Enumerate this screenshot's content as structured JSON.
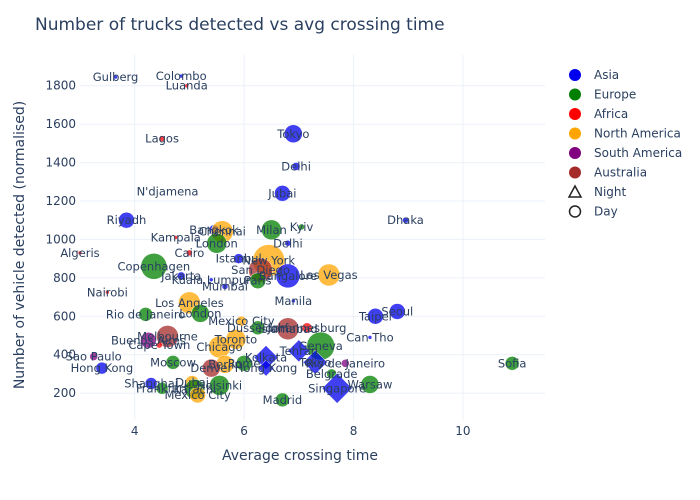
{
  "chart_data": {
    "type": "scatter",
    "title": "Number of trucks detected vs avg crossing time",
    "xlabel": "Average crossing time",
    "ylabel": "Number of vehicle detected (normalised)",
    "xlim": [
      3.0,
      11.5
    ],
    "ylim": [
      60,
      1960
    ],
    "x_ticks": [
      4,
      6,
      8,
      10
    ],
    "y_ticks": [
      200,
      400,
      600,
      800,
      1000,
      1200,
      1400,
      1600,
      1800
    ],
    "grid": true,
    "legend_position": "top-right",
    "legend": [
      {
        "name": "Asia",
        "color": "#0000ee",
        "symbol": "circle"
      },
      {
        "name": "Europe",
        "color": "#008000",
        "symbol": "circle"
      },
      {
        "name": "Africa",
        "color": "#ff0000",
        "symbol": "circle"
      },
      {
        "name": "North America",
        "color": "#ffa500",
        "symbol": "circle"
      },
      {
        "name": "South America",
        "color": "#800080",
        "symbol": "circle"
      },
      {
        "name": "Australia",
        "color": "#a52a2a",
        "symbol": "circle"
      },
      {
        "name": "Night",
        "color": "",
        "symbol": "triangle"
      },
      {
        "name": "Day",
        "color": "",
        "symbol": "circle"
      }
    ],
    "points": [
      {
        "label": "Gulberg",
        "x": 3.65,
        "y": 1845,
        "group": "Asia",
        "size": 2
      },
      {
        "label": "Colombo",
        "x": 4.85,
        "y": 1850,
        "group": "Asia",
        "size": 2
      },
      {
        "label": "Luanda",
        "x": 4.95,
        "y": 1800,
        "group": "Africa",
        "size": 2
      },
      {
        "label": "Tokyo",
        "x": 6.9,
        "y": 1550,
        "group": "Asia",
        "size": 9
      },
      {
        "label": "Lagos",
        "x": 4.5,
        "y": 1525,
        "group": "Africa",
        "size": 3
      },
      {
        "label": "Delhi",
        "x": 6.95,
        "y": 1380,
        "group": "Asia",
        "size": 4
      },
      {
        "label": "N'djamena",
        "x": 4.6,
        "y": 1250,
        "group": "Africa",
        "size": 0
      },
      {
        "label": "Jubai",
        "x": 6.7,
        "y": 1240,
        "group": "Asia",
        "size": 8
      },
      {
        "label": "Riyadh",
        "x": 3.85,
        "y": 1100,
        "group": "Asia",
        "size": 8
      },
      {
        "label": "Dhaka",
        "x": 8.95,
        "y": 1100,
        "group": "Asia",
        "size": 3
      },
      {
        "label": "Bangkok",
        "x": 5.45,
        "y": 1050,
        "group": "Asia",
        "size": 5
      },
      {
        "label": "Chennai",
        "x": 5.6,
        "y": 1040,
        "group": "North America",
        "size": 11
      },
      {
        "label": "Milan",
        "x": 6.5,
        "y": 1050,
        "group": "Europe",
        "size": 10
      },
      {
        "label": "Kyiv",
        "x": 7.05,
        "y": 1065,
        "group": "Europe",
        "size": 3
      },
      {
        "label": "Kampala",
        "x": 4.75,
        "y": 1010,
        "group": "Africa",
        "size": 2
      },
      {
        "label": "London",
        "x": 5.5,
        "y": 980,
        "group": "Europe",
        "size": 10
      },
      {
        "label": "Delhi",
        "x": 6.8,
        "y": 980,
        "group": "Asia",
        "size": 3
      },
      {
        "label": "Algeris",
        "x": 3.0,
        "y": 930,
        "group": "Africa",
        "size": 2
      },
      {
        "label": "Cairo",
        "x": 5.0,
        "y": 930,
        "group": "Africa",
        "size": 3
      },
      {
        "label": "Istanbul",
        "x": 5.9,
        "y": 900,
        "group": "Asia",
        "size": 5
      },
      {
        "label": "New York",
        "x": 6.45,
        "y": 890,
        "group": "North America",
        "size": 16
      },
      {
        "label": "Copenhagen",
        "x": 4.35,
        "y": 860,
        "group": "Europe",
        "size": 13
      },
      {
        "label": "San Diego",
        "x": 6.3,
        "y": 840,
        "group": "Australia",
        "size": 12
      },
      {
        "label": "Jakarta",
        "x": 4.85,
        "y": 810,
        "group": "Asia",
        "size": 4
      },
      {
        "label": "Bangalore",
        "x": 6.8,
        "y": 810,
        "group": "Asia",
        "size": 12
      },
      {
        "label": "Las Vegas",
        "x": 7.55,
        "y": 815,
        "group": "North America",
        "size": 11
      },
      {
        "label": "Kuala Lumpur",
        "x": 5.4,
        "y": 790,
        "group": "Asia",
        "size": 2
      },
      {
        "label": "Paris",
        "x": 6.25,
        "y": 785,
        "group": "Europe",
        "size": 8
      },
      {
        "label": "Mumbai",
        "x": 5.65,
        "y": 755,
        "group": "Asia",
        "size": 3
      },
      {
        "label": "Nairobi",
        "x": 3.5,
        "y": 725,
        "group": "Africa",
        "size": 2
      },
      {
        "label": "Manila",
        "x": 6.9,
        "y": 680,
        "group": "Asia",
        "size": 2
      },
      {
        "label": "Los Angeles",
        "x": 5.0,
        "y": 670,
        "group": "North America",
        "size": 11
      },
      {
        "label": "Rio de Janeiro",
        "x": 4.2,
        "y": 610,
        "group": "Europe",
        "size": 7
      },
      {
        "label": "London",
        "x": 5.2,
        "y": 615,
        "group": "Europe",
        "size": 9
      },
      {
        "label": "Seoul",
        "x": 8.8,
        "y": 625,
        "group": "Asia",
        "size": 8
      },
      {
        "label": "Taipei",
        "x": 8.4,
        "y": 600,
        "group": "Asia",
        "size": 8
      },
      {
        "label": "Mexico City",
        "x": 5.95,
        "y": 575,
        "group": "North America",
        "size": 5
      },
      {
        "label": "Dusseldorf",
        "x": 6.25,
        "y": 540,
        "group": "Europe",
        "size": 7
      },
      {
        "label": "Islamabad",
        "x": 6.8,
        "y": 535,
        "group": "Australia",
        "size": 11
      },
      {
        "label": "Johannesburg",
        "x": 7.15,
        "y": 540,
        "group": "Africa",
        "size": 5
      },
      {
        "label": "Melbourne",
        "x": 4.6,
        "y": 495,
        "group": "Australia",
        "size": 11
      },
      {
        "label": "Can Tho",
        "x": 8.3,
        "y": 490,
        "group": "Asia",
        "size": 2
      },
      {
        "label": "Buenos Aires",
        "x": 4.25,
        "y": 475,
        "group": "South America",
        "size": 8
      },
      {
        "label": "Toronto",
        "x": 5.85,
        "y": 480,
        "group": "North America",
        "size": 10
      },
      {
        "label": "Cape Town",
        "x": 4.45,
        "y": 450,
        "group": "Africa",
        "size": 3
      },
      {
        "label": "Geneva",
        "x": 7.4,
        "y": 445,
        "group": "Europe",
        "size": 14
      },
      {
        "label": "Chicago",
        "x": 5.55,
        "y": 440,
        "group": "North America",
        "size": 11
      },
      {
        "label": "Tehran",
        "x": 7.0,
        "y": 420,
        "group": "Asia",
        "size": 10,
        "symbol": "diamond"
      },
      {
        "label": "Sao Paulo",
        "x": 3.25,
        "y": 390,
        "group": "South America",
        "size": 4
      },
      {
        "label": "Kolkata",
        "x": 6.4,
        "y": 385,
        "group": "Asia",
        "size": 11,
        "symbol": "diamond"
      },
      {
        "label": "Moscow",
        "x": 4.7,
        "y": 360,
        "group": "Europe",
        "size": 7
      },
      {
        "label": "Rome",
        "x": 6.0,
        "y": 355,
        "group": "Europe",
        "size": 8
      },
      {
        "label": "Berlin",
        "x": 5.65,
        "y": 350,
        "group": "North America",
        "size": 9
      },
      {
        "label": "Tokyo",
        "x": 7.3,
        "y": 360,
        "group": "Asia",
        "size": 11,
        "symbol": "diamond"
      },
      {
        "label": "Rio de Janeiro",
        "x": 7.85,
        "y": 355,
        "group": "South America",
        "size": 4
      },
      {
        "label": "Sofia",
        "x": 10.9,
        "y": 355,
        "group": "Europe",
        "size": 7
      },
      {
        "label": "Hong Kong",
        "x": 3.4,
        "y": 330,
        "group": "Asia",
        "size": 6
      },
      {
        "label": "Denver",
        "x": 5.4,
        "y": 330,
        "group": "Australia",
        "size": 9
      },
      {
        "label": "Hong Kong",
        "x": 6.4,
        "y": 330,
        "group": "Asia",
        "size": 7,
        "symbol": "diamond"
      },
      {
        "label": "Belgrade",
        "x": 7.6,
        "y": 300,
        "group": "Europe",
        "size": 5
      },
      {
        "label": "Shanghai",
        "x": 4.3,
        "y": 250,
        "group": "Asia",
        "size": 6
      },
      {
        "label": "Dubai",
        "x": 5.05,
        "y": 255,
        "group": "North America",
        "size": 7
      },
      {
        "label": "Helsinki",
        "x": 5.55,
        "y": 240,
        "group": "Europe",
        "size": 10
      },
      {
        "label": "Warsaw",
        "x": 8.3,
        "y": 245,
        "group": "Europe",
        "size": 9
      },
      {
        "label": "Singapore",
        "x": 7.7,
        "y": 225,
        "group": "Asia",
        "size": 14,
        "symbol": "diamond"
      },
      {
        "label": "Frankfurt",
        "x": 4.5,
        "y": 225,
        "group": "Europe",
        "size": 6
      },
      {
        "label": "Karachi",
        "x": 5.1,
        "y": 220,
        "group": "Europe",
        "size": 10
      },
      {
        "label": "Mexico City",
        "x": 5.15,
        "y": 190,
        "group": "North America",
        "size": 8
      },
      {
        "label": "Madrid",
        "x": 6.7,
        "y": 165,
        "group": "Europe",
        "size": 7
      }
    ]
  }
}
